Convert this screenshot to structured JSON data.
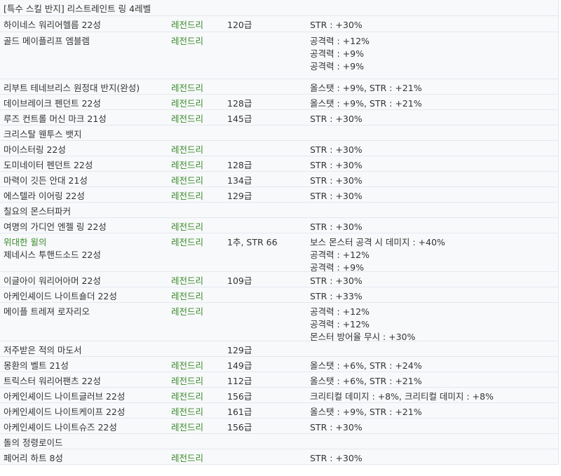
{
  "header": "[특수 스킬 반지] 리스트레인트 링 4레벨",
  "rows": [
    {
      "name": [
        "하이네스 워리어헬름 22성"
      ],
      "grade": "레전드리",
      "req": "120급",
      "opts": [
        "STR : +30%"
      ]
    },
    {
      "name": [
        "골드 메이플리프 엠블렘"
      ],
      "grade": "레전드리",
      "req": "",
      "opts": [
        "공격력 : +12%",
        "공격력 : +9%",
        "공격력 : +9%"
      ]
    },
    {
      "name": [
        "리부트 테네브리스 원정대 반지(완성)"
      ],
      "grade": "레전드리",
      "req": "",
      "opts": [
        "올스탯 : +9%, STR : +21%"
      ]
    },
    {
      "name": [
        "데이브레이크 펜던트 22성"
      ],
      "grade": "레전드리",
      "req": "128급",
      "opts": [
        "올스탯 : +9%, STR : +21%"
      ]
    },
    {
      "name": [
        "루즈 컨트롤 머신 마크 21성"
      ],
      "grade": "레전드리",
      "req": "145급",
      "opts": [
        "STR : +30%"
      ]
    },
    {
      "name": [
        "크리스탈 웬투스 뱃지"
      ],
      "grade": "",
      "req": "",
      "opts": []
    },
    {
      "name": [
        "마이스터링 22성"
      ],
      "grade": "레전드리",
      "req": "",
      "opts": [
        "STR : +30%"
      ]
    },
    {
      "name": [
        "도미네이터 펜던트 22성"
      ],
      "grade": "레전드리",
      "req": "128급",
      "opts": [
        "STR : +30%"
      ]
    },
    {
      "name": [
        "마력이 깃든 안대 21성"
      ],
      "grade": "레전드리",
      "req": "134급",
      "opts": [
        "STR : +30%"
      ]
    },
    {
      "name": [
        "에스텔라 이어링 22성"
      ],
      "grade": "레전드리",
      "req": "129급",
      "opts": [
        "STR : +30%"
      ]
    },
    {
      "name": [
        "칠요의 몬스터파커"
      ],
      "grade": "",
      "req": "",
      "opts": []
    },
    {
      "name": [
        "여명의 가디언 엔젤 링 22성"
      ],
      "grade": "레전드리",
      "req": "",
      "opts": [
        "STR : +30%"
      ]
    },
    {
      "name": [
        "위대한 윌의",
        "제네시스 투핸드소드 22성"
      ],
      "grade": "레전드리",
      "req": "1추, STR 66",
      "opts": [
        "보스 몬스터 공격 시 데미지 : +40%",
        "공격력 : +12%",
        "공격력 : +9%"
      ]
    },
    {
      "name": [
        "이글아이 워리어아머 22성"
      ],
      "grade": "레전드리",
      "req": "109급",
      "opts": [
        "STR : +30%"
      ]
    },
    {
      "name": [
        "아케인셰이드 나이트숄더 22성"
      ],
      "grade": "레전드리",
      "req": "",
      "opts": [
        "STR : +33%"
      ]
    },
    {
      "name": [
        "메이플 트레져 로자리오"
      ],
      "grade": "레전드리",
      "req": "",
      "opts": [
        "공격력 : +12%",
        "공격력 : +12%",
        "몬스터 방어율 무시 : +30%"
      ]
    },
    {
      "name": [
        "저주받은 적의 마도서"
      ],
      "grade": "",
      "req": "129급",
      "opts": []
    },
    {
      "name": [
        "몽환의 벨트 21성"
      ],
      "grade": "레전드리",
      "req": "149급",
      "opts": [
        "올스탯 : +6%, STR : +24%"
      ]
    },
    {
      "name": [
        "트릭스터 워리어팬츠 22성"
      ],
      "grade": "레전드리",
      "req": "112급",
      "opts": [
        "올스탯 : +6%, STR : +21%"
      ]
    },
    {
      "name": [
        "아케인셰이드 나이트글러브 22성"
      ],
      "grade": "레전드리",
      "req": "156급",
      "opts": [
        "크리티컬 데미지 : +8%, 크리티컬 데미지 : +8%"
      ]
    },
    {
      "name": [
        "아케인셰이드 나이트케이프 22성"
      ],
      "grade": "레전드리",
      "req": "161급",
      "opts": [
        "올스탯 : +9%, STR : +21%"
      ]
    },
    {
      "name": [
        "아케인셰이드 나이트슈즈 22성"
      ],
      "grade": "레전드리",
      "req": "156급",
      "opts": [
        "STR : +30%"
      ]
    },
    {
      "name": [
        "돌의 정령로이드"
      ],
      "grade": "",
      "req": "",
      "opts": []
    },
    {
      "name": [
        "페어리 하트 8성"
      ],
      "grade": "레전드리",
      "req": "",
      "opts": [
        "STR : +30%"
      ]
    }
  ]
}
